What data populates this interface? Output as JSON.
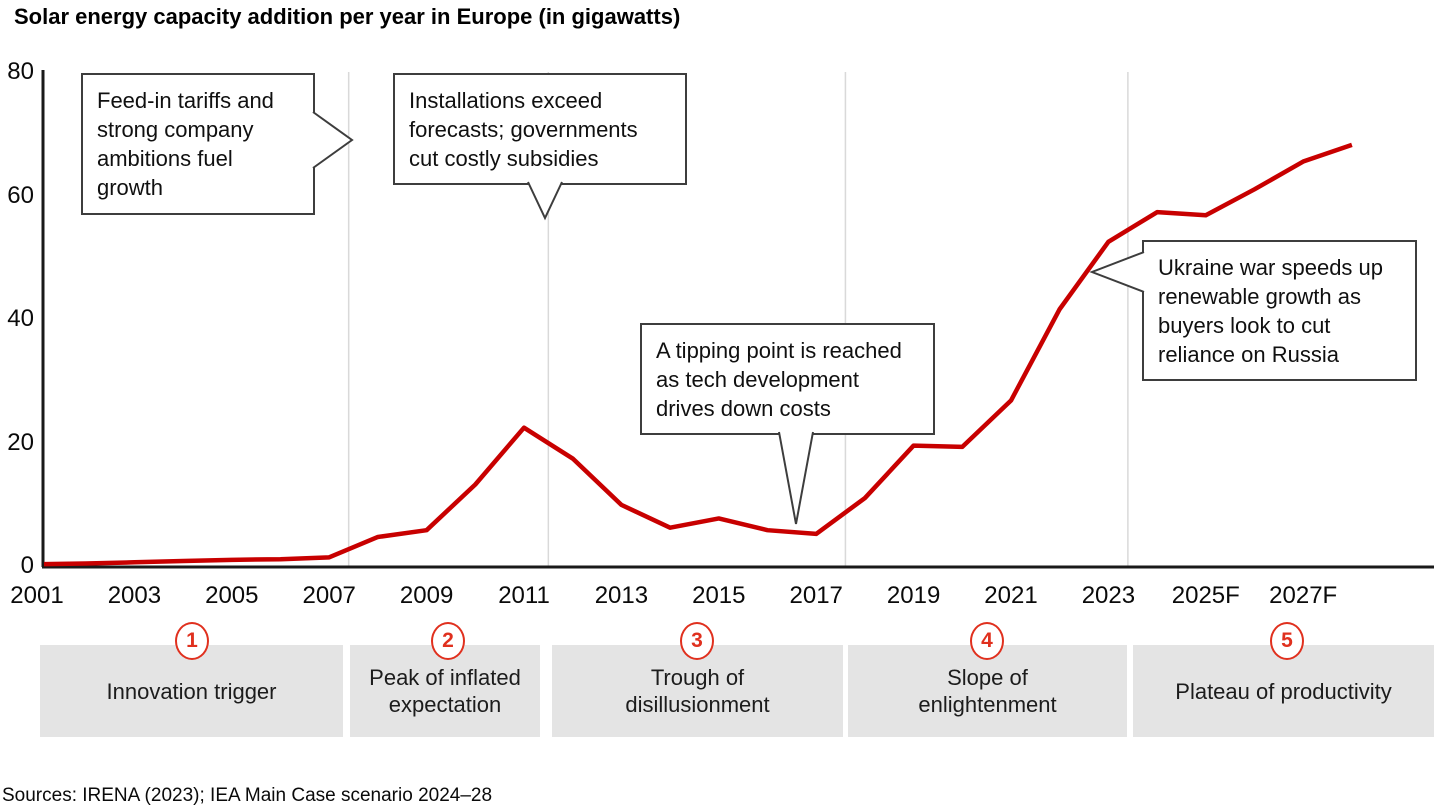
{
  "title": "Solar energy capacity addition per year in Europe (in gigawatts)",
  "source_note": "Sources: IRENA (2023); IEA Main Case scenario 2024–28",
  "colors": {
    "line": "#c80000",
    "accent": "#e0301e",
    "phase_bg": "#e4e4e4",
    "grid": "#d9d9d9",
    "axis": "#1a1a1a",
    "callout_border": "#3d3d3d"
  },
  "chart_data": {
    "type": "line",
    "title": "Solar energy capacity addition per year in Europe (in gigawatts)",
    "series_name": "Annual solar capacity addition (GW)",
    "x": [
      2001,
      2002,
      2003,
      2004,
      2005,
      2006,
      2007,
      2008,
      2009,
      2010,
      2011,
      2012,
      2013,
      2014,
      2015,
      2016,
      2017,
      2018,
      2019,
      2020,
      2021,
      2022,
      2023,
      2024,
      2025,
      2026,
      2027,
      2028
    ],
    "values": [
      0.3,
      0.4,
      0.6,
      0.8,
      1.0,
      1.1,
      1.4,
      4.7,
      5.8,
      13.2,
      22.4,
      17.4,
      9.9,
      6.2,
      7.7,
      5.8,
      5.2,
      11.0,
      19.5,
      19.3,
      26.8,
      41.6,
      52.5,
      57.3,
      56.8,
      61.0,
      65.5,
      68.2
    ],
    "xticks": [
      "2001",
      "2003",
      "2005",
      "2007",
      "2009",
      "2011",
      "2013",
      "2015",
      "2017",
      "2019",
      "2021",
      "2023",
      "2025F",
      "2027F"
    ],
    "yticks": [
      0,
      20,
      40,
      60,
      80
    ],
    "ylim": [
      0,
      80
    ],
    "xlabel": "",
    "ylabel": "",
    "legend": "none",
    "grid": "vertical phase-boundary lines only",
    "grid_years": [
      2007.4,
      2011.5,
      2017.6,
      2023.4
    ]
  },
  "annotations": [
    {
      "text": "Feed-in tariffs and strong company ambitions fuel growth"
    },
    {
      "text": "Installations exceed forecasts; governments cut costly subsidies"
    },
    {
      "text": "A tipping point is reached as tech development drives down costs"
    },
    {
      "text": "Ukraine war speeds up renewable growth as buyers look to cut reliance on Russia"
    }
  ],
  "phases": [
    {
      "number": "1",
      "label": "Innovation trigger"
    },
    {
      "number": "2",
      "label": "Peak of inflated expectation"
    },
    {
      "number": "3",
      "label": "Trough of disillusionment"
    },
    {
      "number": "4",
      "label": "Slope of enlightenment"
    },
    {
      "number": "5",
      "label": "Plateau of productivity"
    }
  ]
}
